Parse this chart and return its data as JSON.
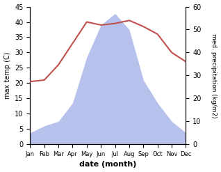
{
  "months": [
    "Jan",
    "Feb",
    "Mar",
    "Apr",
    "May",
    "Jun",
    "Jul",
    "Aug",
    "Sep",
    "Oct",
    "Nov",
    "Dec"
  ],
  "temperature": [
    20.5,
    21.0,
    26.0,
    33.0,
    40.0,
    39.0,
    39.5,
    40.5,
    38.5,
    36.0,
    30.0,
    27.0
  ],
  "precipitation": [
    5.0,
    8.0,
    10.0,
    18.0,
    38.0,
    52.0,
    57.0,
    50.0,
    28.0,
    18.0,
    10.0,
    5.0
  ],
  "temp_color": "#c0504d",
  "precip_fill_color": "#aab8e8",
  "ylabel_left": "max temp (C)",
  "ylabel_right": "med. precipitation (kg/m2)",
  "xlabel": "date (month)",
  "ylim_left": [
    0,
    45
  ],
  "ylim_right": [
    0,
    60
  ],
  "background_color": "#ffffff"
}
